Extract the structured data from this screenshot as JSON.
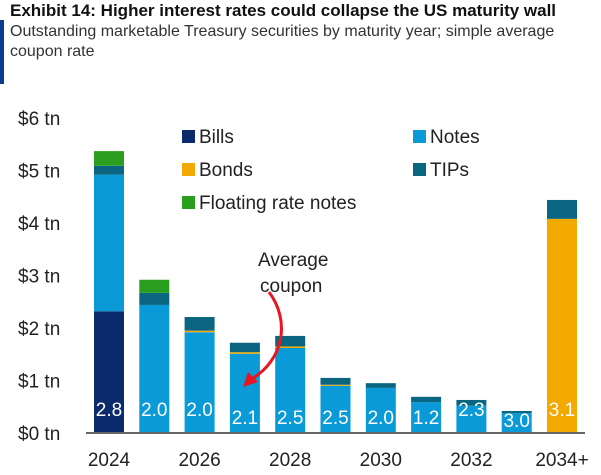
{
  "title": "Exhibit 14: Higher interest rates could collapse the US maturity wall",
  "subtitle": "Outstanding marketable Treasury securities by maturity year; simple average coupon rate",
  "chart_data": {
    "type": "bar",
    "stacked": true,
    "categories": [
      "2024",
      "2025",
      "2026",
      "2027",
      "2028",
      "2029",
      "2030",
      "2031",
      "2032",
      "2033",
      "2034+"
    ],
    "x_tick_labels": [
      "2024",
      "2026",
      "2028",
      "2030",
      "2032",
      "2034+"
    ],
    "y_tick_labels": [
      "$0 tn",
      "$1 tn",
      "$2 tn",
      "$3 tn",
      "$4 tn",
      "$5 tn",
      "$6 tn"
    ],
    "ylim": [
      0,
      6
    ],
    "unit": "tn",
    "grid": false,
    "legend_placement": "top-center",
    "series": [
      {
        "name": "Bills",
        "color": "#0b2a6b",
        "values": [
          2.3,
          0,
          0,
          0,
          0,
          0,
          0,
          0,
          0,
          0,
          0
        ]
      },
      {
        "name": "Notes",
        "color": "#0a9ad8",
        "values": [
          2.6,
          2.42,
          1.9,
          1.49,
          1.6,
          0.88,
          0.84,
          0.57,
          0.5,
          0.36,
          0
        ]
      },
      {
        "name": "Bonds",
        "color": "#f2a900",
        "values": [
          0,
          0,
          0.03,
          0.03,
          0.03,
          0.02,
          0,
          0,
          0,
          0,
          4.06
        ]
      },
      {
        "name": "TIPs",
        "color": "#0a6680",
        "values": [
          0.17,
          0.23,
          0.26,
          0.18,
          0.2,
          0.13,
          0.09,
          0.1,
          0.11,
          0.04,
          0.36
        ]
      },
      {
        "name": "Floating rate notes",
        "color": "#2a9e1e",
        "values": [
          0.28,
          0.25,
          0,
          0,
          0,
          0,
          0,
          0,
          0,
          0,
          0
        ]
      }
    ],
    "data_labels": [
      "2.8",
      "2.0",
      "2.0",
      "2.1",
      "2.5",
      "2.5",
      "2.0",
      "1.2",
      "2.3",
      "3.0",
      "3.1"
    ],
    "annotation": {
      "line1": "Average",
      "line2": "coupon",
      "color": "#e8171f"
    }
  }
}
